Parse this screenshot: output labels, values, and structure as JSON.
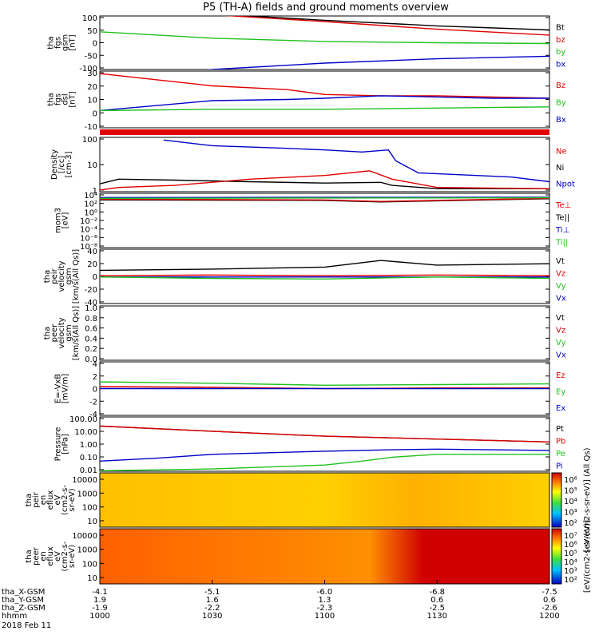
{
  "chart_data": {
    "type": "line",
    "title": "P5 (TH-A) fields and ground moments overview",
    "date_label": "2018 Feb 11",
    "x_axis": {
      "rows": [
        {
          "label": "tha_X-GSM",
          "values": [
            "-4.1",
            "-5.1",
            "-6.0",
            "-6.8",
            "-7.5"
          ]
        },
        {
          "label": "tha_Y-GSM",
          "values": [
            "1.9",
            "1.6",
            "1.3",
            "0.6",
            "0.6"
          ]
        },
        {
          "label": "tha_Z-GSM",
          "values": [
            "-1.9",
            "-2.2",
            "-2.3",
            "-2.5",
            "-2.6"
          ]
        },
        {
          "label": "hhmm",
          "values": [
            "1000",
            "1030",
            "1100",
            "1130",
            "1200"
          ]
        }
      ]
    },
    "panels": [
      {
        "ylabel": [
          "tha",
          "fgs",
          "gsm",
          "[nT]"
        ],
        "yticks": [
          "100",
          "50",
          "0",
          "-50",
          "-100"
        ],
        "ylim": [
          -100,
          110
        ],
        "legend": [
          {
            "name": "Bt",
            "color": "#000000"
          },
          {
            "name": "bz",
            "color": "#e00000"
          },
          {
            "name": "by",
            "color": "#20c020"
          },
          {
            "name": "bx",
            "color": "#0000c8"
          }
        ],
        "series": [
          {
            "name": "Bt",
            "color": "#000000",
            "x": [
              1000,
              1030,
              1100,
              1130,
              1200
            ],
            "y": [
              150,
              118,
              93,
              71,
              55
            ]
          },
          {
            "name": "bz",
            "color": "#e00000",
            "x": [
              1000,
              1030,
              1100,
              1130,
              1200
            ],
            "y": [
              145,
              115,
              88,
              58,
              35
            ]
          },
          {
            "name": "by",
            "color": "#20c020",
            "x": [
              1000,
              1030,
              1100,
              1130,
              1200
            ],
            "y": [
              48,
              23,
              10,
              5,
              2
            ]
          },
          {
            "name": "bx",
            "color": "#0000c8",
            "x": [
              1000,
              1030,
              1100,
              1130,
              1200
            ],
            "y": [
              -150,
              -100,
              -75,
              -58,
              -48
            ]
          }
        ]
      },
      {
        "ylabel": [
          "tha",
          "fgs",
          "dsl",
          "[nT]"
        ],
        "yticks": [
          "30",
          "20",
          "10",
          "0",
          "-10"
        ],
        "ylim": [
          -15,
          31
        ],
        "legend": [
          {
            "name": "Bz",
            "color": "#e00000"
          },
          {
            "name": "By",
            "color": "#20c020"
          },
          {
            "name": "Bx",
            "color": "#0000c8"
          }
        ],
        "series": [
          {
            "name": "Bz",
            "color": "#e00000",
            "x": [
              1000,
              1015,
              1030,
              1050,
              1100,
              1115,
              1130,
              1145,
              1200
            ],
            "y": [
              29,
              24,
              19,
              16,
              12,
              11,
              11,
              10,
              9
            ]
          },
          {
            "name": "Bx",
            "color": "#0000c8",
            "x": [
              1000,
              1015,
              1030,
              1050,
              1100,
              1115,
              1130,
              1145,
              1200
            ],
            "y": [
              -1,
              3,
              7,
              8,
              9,
              11,
              10,
              9,
              9
            ]
          },
          {
            "name": "By",
            "color": "#20c020",
            "x": [
              1000,
              1030,
              1100,
              1130,
              1200
            ],
            "y": [
              -1,
              0,
              0,
              1,
              2
            ]
          }
        ]
      },
      {
        "ylabel": [
          "Density",
          "[/cc]",
          "[cm-3]"
        ],
        "yticks": [
          "100",
          "10",
          "1"
        ],
        "scale": "log",
        "ylim": [
          0.5,
          200
        ],
        "legend": [
          {
            "name": "Ne",
            "color": "#e00000"
          },
          {
            "name": "Ni",
            "color": "#000000"
          },
          {
            "name": "Npot",
            "color": "#0000c8"
          }
        ],
        "series": [
          {
            "name": "Npot",
            "color": "#0000c8",
            "x": [
              1017,
              1030,
              1050,
              1100,
              1110,
              1117,
              1119,
              1125,
              1150,
              1200
            ],
            "y": [
              150,
              80,
              60,
              50,
              40,
              50,
              15,
              4,
              2.5,
              1.5
            ]
          },
          {
            "name": "Ni",
            "color": "#000000",
            "x": [
              1000,
              1005,
              1020,
              1040,
              1100,
              1115,
              1118,
              1130,
              1200
            ],
            "y": [
              1.2,
              2.0,
              1.8,
              1.5,
              1.3,
              1.4,
              1.0,
              0.7,
              0.7
            ]
          },
          {
            "name": "Ne",
            "color": "#e00000",
            "x": [
              1000,
              1005,
              1020,
              1040,
              1100,
              1112,
              1118,
              1130,
              1200
            ],
            "y": [
              0.6,
              0.8,
              1.0,
              2.0,
              3.0,
              5.0,
              2.0,
              0.8,
              0.7
            ]
          }
        ]
      },
      {
        "ylabel": [
          "mom3",
          "[eV]"
        ],
        "yticks": [
          "10⁴",
          "10²",
          "10⁰",
          "10⁻²",
          "10⁻⁴",
          "10⁻⁶",
          "10⁻⁸"
        ],
        "scale": "log",
        "ylim": [
          1e-09,
          100000.0
        ],
        "legend": [
          {
            "name": "Te⊥",
            "color": "#e00000"
          },
          {
            "name": "Te||",
            "color": "#000000"
          },
          {
            "name": "Ti⊥",
            "color": "#0000c8"
          },
          {
            "name": "Ti||",
            "color": "#20c020"
          }
        ],
        "series": [
          {
            "name": "Te||",
            "color": "#000000",
            "x": [
              1000,
              1100,
              1115,
              1200
            ],
            "y": [
              2000,
              1500,
              600,
              4000
            ]
          },
          {
            "name": "Te⊥",
            "color": "#e00000",
            "x": [
              1000,
              1100,
              1115,
              1200
            ],
            "y": [
              3000,
              2000,
              800,
              5000
            ]
          },
          {
            "name": "Ti⊥",
            "color": "#0000c8",
            "x": [
              1000,
              1100,
              1200
            ],
            "y": [
              8000,
              9000,
              10000
            ]
          },
          {
            "name": "Ti||",
            "color": "#20c020",
            "x": [
              1000,
              1100,
              1200
            ],
            "y": [
              5000,
              6000,
              7000
            ]
          }
        ]
      },
      {
        "ylabel": [
          "tha",
          "peir",
          "velocity",
          "gsm",
          "[km/s(All Qs)]"
        ],
        "yticks": [
          "40",
          "20",
          "0",
          "-20",
          "-40"
        ],
        "ylim": [
          -40,
          42
        ],
        "legend": [
          {
            "name": "Vt",
            "color": "#000000"
          },
          {
            "name": "Vz",
            "color": "#e00000"
          },
          {
            "name": "Vy",
            "color": "#20c020"
          },
          {
            "name": "Vx",
            "color": "#0000c8"
          }
        ],
        "series": [
          {
            "name": "Vt",
            "color": "#000000",
            "x": [
              1000,
              1030,
              1100,
              1115,
              1130,
              1200
            ],
            "y": [
              10,
              12,
              15,
              25,
              18,
              20
            ]
          },
          {
            "name": "Vx",
            "color": "#0000c8",
            "x": [
              1000,
              1030,
              1100,
              1130,
              1200
            ],
            "y": [
              0,
              0,
              0,
              0,
              0
            ]
          },
          {
            "name": "Vy",
            "color": "#20c020",
            "x": [
              1000,
              1030,
              1100,
              1130,
              1200
            ],
            "y": [
              0,
              -2,
              -3,
              0,
              -2
            ]
          },
          {
            "name": "Vz",
            "color": "#e00000",
            "x": [
              1000,
              1030,
              1100,
              1130,
              1200
            ],
            "y": [
              2,
              3,
              2,
              3,
              2
            ]
          }
        ]
      },
      {
        "ylabel": [
          "tha",
          "peer",
          "velocity",
          "gsm",
          "[km/s(All Qs)]"
        ],
        "yticks": [
          "1.0",
          "0.8",
          "0.6",
          "0.4",
          "0.2",
          "0.0"
        ],
        "ylim": [
          0,
          1
        ],
        "legend": [
          {
            "name": "Vt",
            "color": "#000000"
          },
          {
            "name": "Vz",
            "color": "#e00000"
          },
          {
            "name": "Vy",
            "color": "#20c020"
          },
          {
            "name": "Vx",
            "color": "#0000c8"
          }
        ],
        "series": []
      },
      {
        "ylabel": [
          "E=-VxB",
          "[mV/m]"
        ],
        "yticks": [
          "4",
          "2",
          "0",
          "-2",
          "-4"
        ],
        "ylim": [
          -4,
          4
        ],
        "legend": [
          {
            "name": "Ez",
            "color": "#e00000"
          },
          {
            "name": "Ey",
            "color": "#20c020"
          },
          {
            "name": "Ex",
            "color": "#0000c8"
          }
        ],
        "series": [
          {
            "name": "Ey",
            "color": "#20c020",
            "x": [
              1000,
              1030,
              1100,
              1130,
              1200
            ],
            "y": [
              1.0,
              0.8,
              0.5,
              0.6,
              0.7
            ]
          },
          {
            "name": "Ez",
            "color": "#e00000",
            "x": [
              1000,
              1030,
              1100,
              1130,
              1200
            ],
            "y": [
              0.3,
              0.2,
              0.0,
              0.1,
              0.1
            ]
          },
          {
            "name": "Ex",
            "color": "#0000c8",
            "x": [
              1000,
              1200
            ],
            "y": [
              0,
              0
            ]
          }
        ]
      },
      {
        "ylabel": [
          "Pressure",
          "[nPa]"
        ],
        "yticks": [
          "100.00",
          "10.00",
          "1.00",
          "0.10",
          "0.01"
        ],
        "scale": "log",
        "ylim": [
          0.01,
          150
        ],
        "legend": [
          {
            "name": "Pt",
            "color": "#000000"
          },
          {
            "name": "Pb",
            "color": "#e00000"
          },
          {
            "name": "Pe",
            "color": "#20c020"
          },
          {
            "name": "Pi",
            "color": "#0000c8"
          }
        ],
        "series": [
          {
            "name": "Pt",
            "color": "#000000",
            "x": [
              1000,
              1030,
              1100,
              1130,
              1200
            ],
            "y": [
              30,
              12,
              5,
              3,
              1.8
            ]
          },
          {
            "name": "Pb",
            "color": "#e00000",
            "x": [
              1000,
              1030,
              1100,
              1130,
              1200
            ],
            "y": [
              30,
              12,
              5,
              3,
              1.8
            ]
          },
          {
            "name": "Pi",
            "color": "#0000c8",
            "x": [
              1000,
              1015,
              1030,
              1100,
              1118,
              1130,
              1200
            ],
            "y": [
              0.06,
              0.1,
              0.2,
              0.35,
              0.45,
              0.5,
              0.4
            ]
          },
          {
            "name": "Pe",
            "color": "#20c020",
            "x": [
              1000,
              1030,
              1100,
              1110,
              1118,
              1130,
              1200
            ],
            "y": [
              0.011,
              0.015,
              0.03,
              0.06,
              0.12,
              0.2,
              0.2
            ]
          }
        ]
      }
    ],
    "spectrograms": [
      {
        "ylabel": [
          "tha",
          "peir",
          "en",
          "eflux",
          "eV",
          "(cm2-s-",
          "sr-eV)"
        ],
        "yticks": [
          "10000",
          "1000",
          "100",
          "10"
        ]
      },
      {
        "ylabel": [
          "tha",
          "peer",
          "en",
          "eflux",
          "eV",
          "(cm2-s-",
          "sr-eV)"
        ],
        "yticks": [
          "10000",
          "1000",
          "100",
          "10"
        ]
      }
    ],
    "colorbars": [
      {
        "label": "[eV/(cm2-s-sr-eV)] (All Qs)",
        "ticks": [
          "10⁶",
          "10⁵",
          "10⁴",
          "10³",
          "10²"
        ]
      },
      {
        "label": "[eV/(cm2-s-sr-eV)]",
        "ticks": [
          "10⁷",
          "10⁶",
          "10⁵",
          "10⁴",
          "10³",
          "10²"
        ]
      }
    ]
  }
}
